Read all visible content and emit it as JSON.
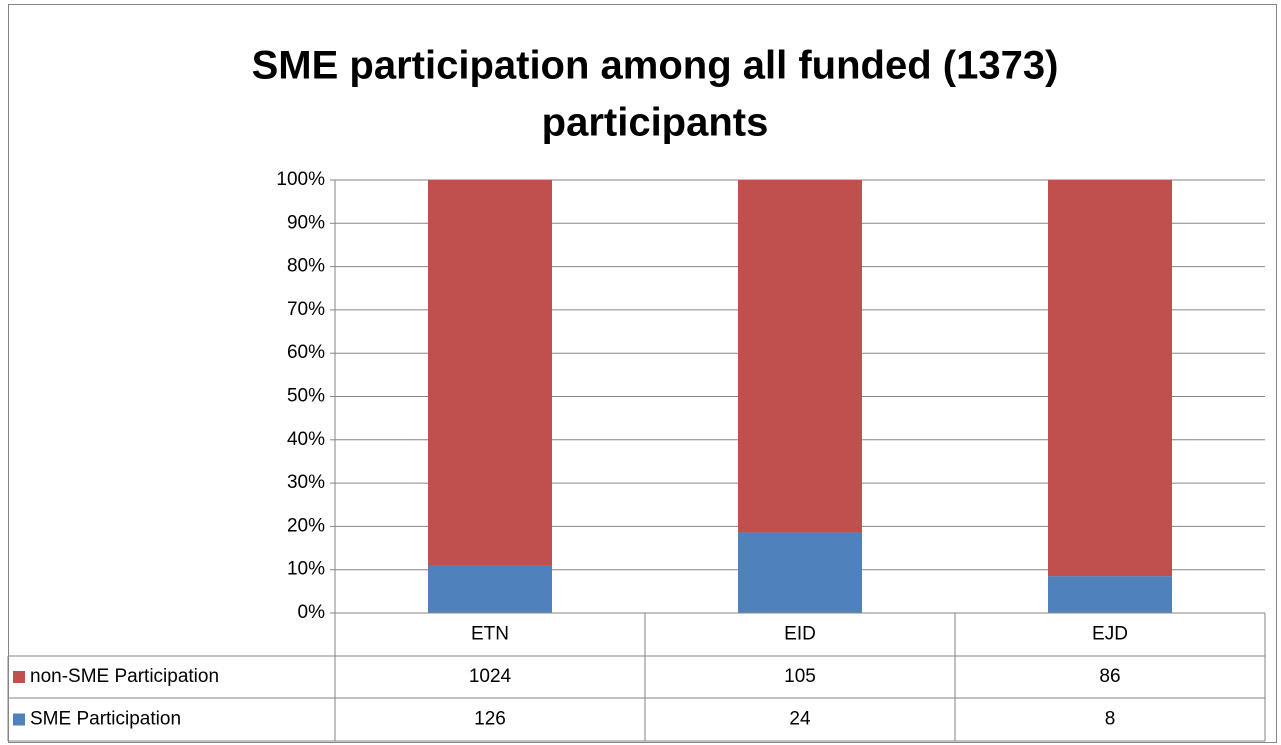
{
  "chart_data": {
    "type": "stacked_percent_bar",
    "title": "SME participation among all funded (1373)",
    "subtitle": "participants",
    "categories": [
      "ETN",
      "EID",
      "EJD"
    ],
    "series": [
      {
        "name": "SME Participation",
        "color": "#4f81bd",
        "values": [
          126,
          24,
          8
        ]
      },
      {
        "name": "non-SME Participation",
        "color": "#c0504d",
        "values": [
          1024,
          105,
          86
        ]
      }
    ],
    "ylim": [
      0,
      100
    ],
    "yticks": [
      {
        "value": 0,
        "label": "0%"
      },
      {
        "value": 10,
        "label": "10%"
      },
      {
        "value": 20,
        "label": "20%"
      },
      {
        "value": 30,
        "label": "30%"
      },
      {
        "value": 40,
        "label": "40%"
      },
      {
        "value": 50,
        "label": "50%"
      },
      {
        "value": 60,
        "label": "60%"
      },
      {
        "value": 70,
        "label": "70%"
      },
      {
        "value": 80,
        "label": "80%"
      },
      {
        "value": 90,
        "label": "90%"
      },
      {
        "value": 100,
        "label": "100%"
      }
    ],
    "grid": true
  }
}
